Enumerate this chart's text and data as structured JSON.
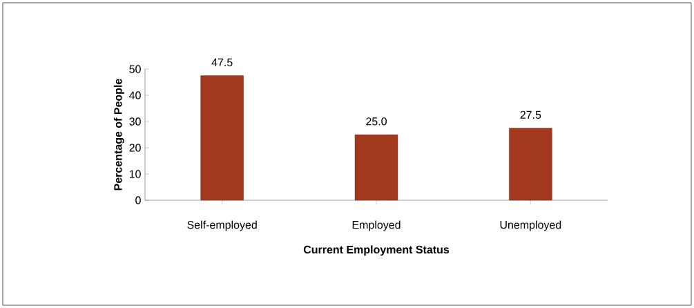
{
  "chart_data": {
    "type": "bar",
    "xlabel": "Current Employment Status",
    "ylabel": "Percentage of People",
    "categories": [
      "Self-employed",
      "Employed",
      "Unemployed"
    ],
    "values": [
      47.5,
      25.0,
      27.5
    ],
    "value_labels": [
      "47.5",
      "25.0",
      "27.5"
    ],
    "color": "#a3391f",
    "ylim": [
      0,
      50
    ],
    "yticks": [
      0,
      10,
      20,
      30,
      40,
      50
    ]
  }
}
